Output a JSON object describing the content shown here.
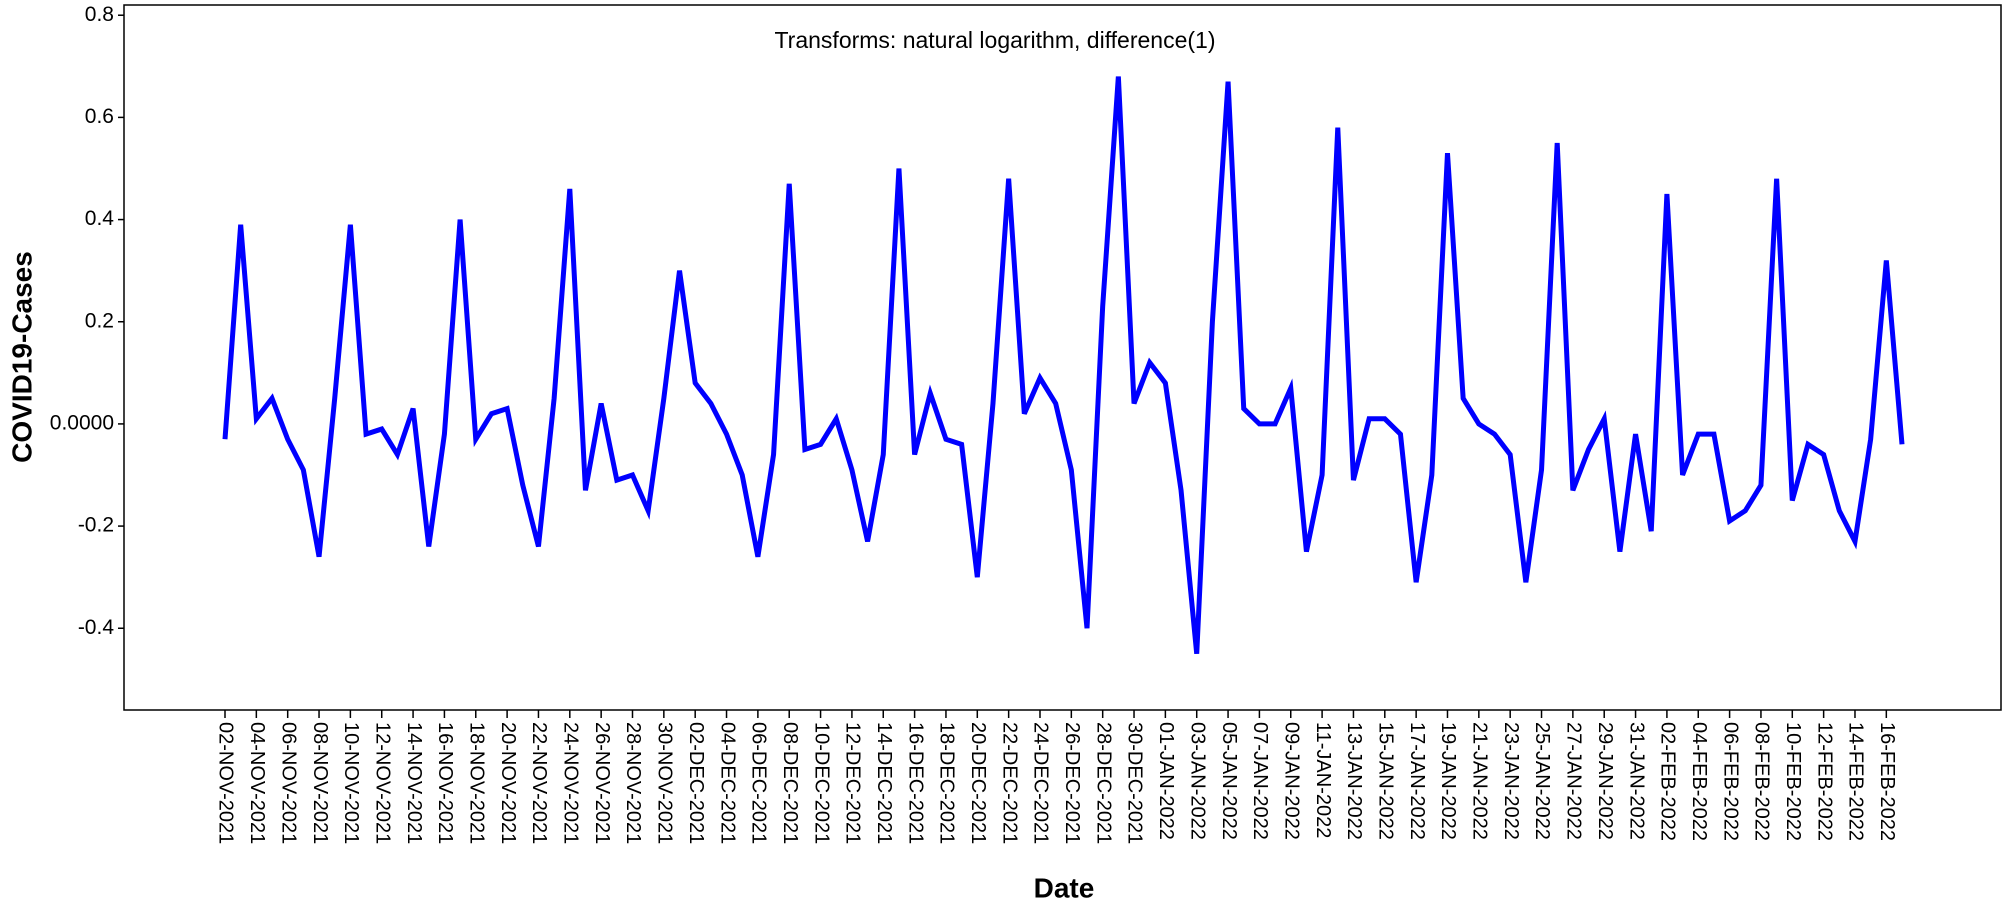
{
  "chart_data": {
    "type": "line",
    "annotation": "Transforms: natural logarithm, difference(1)",
    "x_label": "Date",
    "y_label": "COVID19-Cases",
    "categories": [
      "02-NOV-2021",
      null,
      "04-NOV-2021",
      null,
      "06-NOV-2021",
      null,
      "08-NOV-2021",
      null,
      "10-NOV-2021",
      null,
      "12-NOV-2021",
      null,
      "14-NOV-2021",
      null,
      "16-NOV-2021",
      null,
      "18-NOV-2021",
      null,
      "20-NOV-2021",
      null,
      "22-NOV-2021",
      null,
      "24-NOV-2021",
      null,
      "26-NOV-2021",
      null,
      "28-NOV-2021",
      null,
      "30-NOV-2021",
      null,
      "02-DEC-2021",
      null,
      "04-DEC-2021",
      null,
      "06-DEC-2021",
      null,
      "08-DEC-2021",
      null,
      "10-DEC-2021",
      null,
      "12-DEC-2021",
      null,
      "14-DEC-2021",
      null,
      "16-DEC-2021",
      null,
      "18-DEC-2021",
      null,
      "20-DEC-2021",
      null,
      "22-DEC-2021",
      null,
      "24-DEC-2021",
      null,
      "26-DEC-2021",
      null,
      "28-DEC-2021",
      null,
      "30-DEC-2021",
      null,
      "01-JAN-2022",
      null,
      "03-JAN-2022",
      null,
      "05-JAN-2022",
      null,
      "07-JAN-2022",
      null,
      "09-JAN-2022",
      null,
      "11-JAN-2022",
      null,
      "13-JAN-2022",
      null,
      "15-JAN-2022",
      null,
      "17-JAN-2022",
      null,
      "19-JAN-2022",
      null,
      "21-JAN-2022",
      null,
      "23-JAN-2022",
      null,
      "25-JAN-2022",
      null,
      "27-JAN-2022",
      null,
      "29-JAN-2022",
      null,
      "31-JAN-2022",
      null,
      "02-FEB-2022",
      null,
      "04-FEB-2022",
      null,
      "06-FEB-2022",
      null,
      "08-FEB-2022",
      null,
      "10-FEB-2022",
      null,
      "12-FEB-2022",
      null,
      "14-FEB-2022",
      null,
      "16-FEB-2022",
      null
    ],
    "series": [
      {
        "color": "#0000ff",
        "values": [
          -0.03,
          0.39,
          0.01,
          0.05,
          -0.03,
          -0.09,
          -0.26,
          0.05,
          0.39,
          -0.02,
          -0.01,
          -0.06,
          0.03,
          -0.24,
          -0.02,
          0.4,
          -0.03,
          0.02,
          0.03,
          -0.12,
          -0.24,
          0.05,
          0.46,
          -0.13,
          0.04,
          -0.11,
          -0.1,
          -0.17,
          0.05,
          0.3,
          0.08,
          0.04,
          -0.02,
          -0.1,
          -0.26,
          -0.06,
          0.47,
          -0.05,
          -0.04,
          0.01,
          -0.09,
          -0.23,
          -0.06,
          0.5,
          -0.06,
          0.06,
          -0.03,
          -0.04,
          -0.3,
          0.04,
          0.48,
          0.02,
          0.09,
          0.04,
          -0.09,
          -0.4,
          0.23,
          0.68,
          0.04,
          0.12,
          0.08,
          -0.13,
          -0.45,
          0.2,
          0.67,
          0.03,
          0.0,
          0.0,
          0.07,
          -0.25,
          -0.1,
          0.58,
          -0.11,
          0.01,
          0.01,
          -0.02,
          -0.31,
          -0.1,
          0.53,
          0.05,
          0.0,
          -0.02,
          -0.06,
          -0.31,
          -0.09,
          0.55,
          -0.13,
          -0.05,
          0.01,
          -0.25,
          -0.02,
          -0.21,
          0.45,
          -0.1,
          -0.02,
          -0.02,
          -0.19,
          -0.17,
          -0.12,
          0.48,
          -0.15,
          -0.04,
          -0.06,
          -0.17,
          -0.23,
          -0.03,
          0.32,
          -0.04
        ]
      }
    ],
    "ylim": [
      -0.56,
      0.82
    ],
    "yticks": [
      -0.4,
      -0.2,
      {
        "value": 0,
        "label": "0.0000"
      },
      0.2,
      0.4,
      0.6,
      0.8
    ]
  }
}
